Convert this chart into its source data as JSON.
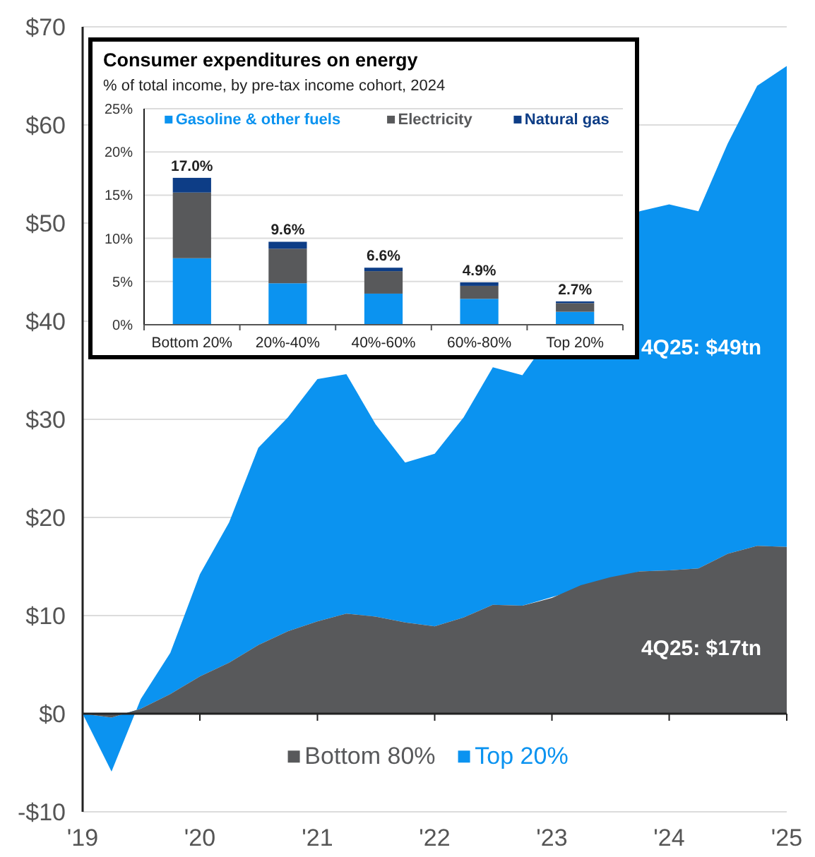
{
  "chart_data": [
    {
      "type": "area",
      "stacked": true,
      "x": [
        "2019-01",
        "2019-04",
        "2019-07",
        "2019-10",
        "2020-01",
        "2020-04",
        "2020-07",
        "2020-10",
        "2021-01",
        "2021-04",
        "2021-07",
        "2021-10",
        "2022-01",
        "2022-04",
        "2022-07",
        "2022-10",
        "2023-01",
        "2023-04",
        "2023-07",
        "2023-10",
        "2024-01",
        "2024-04",
        "2024-07",
        "2024-10",
        "2025-01"
      ],
      "series": [
        {
          "name": "Bottom 80%",
          "color": "#58595b",
          "values": [
            0,
            -0.4,
            0.5,
            2.0,
            3.8,
            5.2,
            7.0,
            8.4,
            9.4,
            10.2,
            9.9,
            9.3,
            8.9,
            9.8,
            11.1,
            11.0,
            11.8,
            13.1,
            13.9,
            14.5,
            14.6,
            14.8,
            16.3,
            17.1,
            17
          ]
        },
        {
          "name": "Top 20%",
          "color": "#0b93f0",
          "values": [
            0,
            -5.5,
            1.0,
            4.2,
            10.4,
            14.3,
            20.1,
            21.8,
            24.7,
            24.4,
            19.6,
            16.3,
            17.6,
            20.4,
            24.2,
            23.5,
            null,
            null,
            null,
            36.7,
            37.3,
            36.4,
            41.8,
            46.9,
            49
          ]
        }
      ],
      "xlim": [
        "2019-01",
        "2025-01"
      ],
      "xticks": [
        {
          "value": "2019-01",
          "label": "'19"
        },
        {
          "value": "2020-01",
          "label": "'20"
        },
        {
          "value": "2021-01",
          "label": "'21"
        },
        {
          "value": "2022-01",
          "label": "'22"
        },
        {
          "value": "2023-01",
          "label": "'23"
        },
        {
          "value": "2024-01",
          "label": "'24"
        },
        {
          "value": "2025-01",
          "label": "'25"
        }
      ],
      "ylim": [
        -10,
        70
      ],
      "yticks": [
        {
          "value": -10,
          "label": "-$10"
        },
        {
          "value": 0,
          "label": "$0"
        },
        {
          "value": 10,
          "label": "$10"
        },
        {
          "value": 20,
          "label": "$20"
        },
        {
          "value": 30,
          "label": "$30"
        },
        {
          "value": 40,
          "label": "$40"
        },
        {
          "value": 50,
          "label": "$50"
        },
        {
          "value": 60,
          "label": "$60"
        },
        {
          "value": 70,
          "label": "$70"
        }
      ],
      "grid": "y",
      "legend": "bottom",
      "annotations": [
        "4Q25: $17tn",
        "4Q25: $49tn"
      ]
    },
    {
      "type": "bar",
      "stacked": true,
      "title": "Consumer expenditures on energy",
      "subtitle": "% of total income, by pre-tax income cohort, 2024",
      "categories": [
        "Bottom 20%",
        "20%-40%",
        "40%-60%",
        "60%-80%",
        "Top 20%"
      ],
      "series": [
        {
          "name": "Gasoline & other fuels",
          "color": "#0b93f0",
          "values": [
            7.7,
            4.8,
            3.6,
            3.0,
            1.5
          ]
        },
        {
          "name": "Electricity",
          "color": "#58595b",
          "values": [
            7.6,
            4.0,
            2.6,
            1.5,
            1.0
          ]
        },
        {
          "name": "Natural gas",
          "color": "#0d3d86",
          "values": [
            1.7,
            0.8,
            0.4,
            0.4,
            0.2
          ]
        }
      ],
      "ylim": [
        0,
        25
      ],
      "yticks": [
        {
          "value": 0,
          "label": "0%"
        },
        {
          "value": 5,
          "label": "5%"
        },
        {
          "value": 10,
          "label": "10%"
        },
        {
          "value": 15,
          "label": "15%"
        },
        {
          "value": 20,
          "label": "20%"
        },
        {
          "value": 25,
          "label": "25%"
        }
      ],
      "grid": "y",
      "legend": "top",
      "totals": [
        "17.0%",
        "9.6%",
        "6.6%",
        "4.9%",
        "2.7%"
      ]
    }
  ]
}
